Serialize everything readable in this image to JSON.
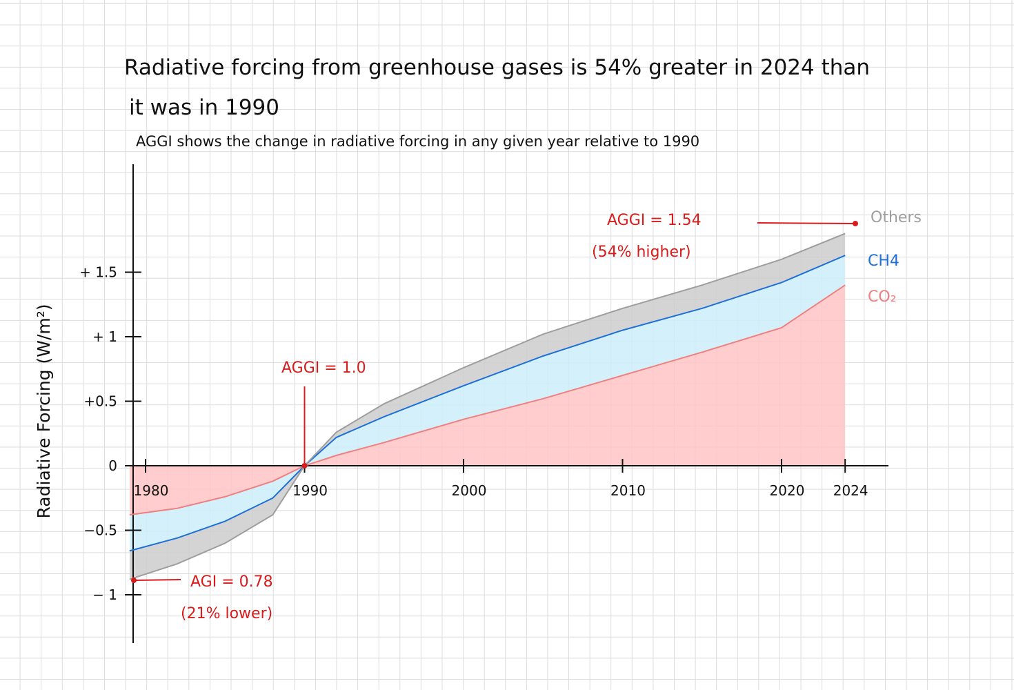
{
  "chart_data": {
    "type": "area",
    "title_lines": [
      "Radiative forcing from greenhouse gases is 54% greater in 2024 than",
      "it was in 1990"
    ],
    "subtitle": "AGGI shows the change in radiative forcing in any given year relative to 1990",
    "ylabel": "Radiative Forcing (W/m²)",
    "x_ticks": [
      1980,
      1990,
      2000,
      2010,
      2020,
      2024
    ],
    "x_tick_labels": [
      "1980",
      "1990",
      "2000",
      "2010",
      "2020",
      "2024"
    ],
    "y_ticks": [
      -1,
      -0.5,
      0,
      0.5,
      1,
      1.5
    ],
    "y_tick_labels": [
      "− 1",
      "−0.5",
      "0",
      "+0.5",
      "+ 1",
      "+ 1.5"
    ],
    "xlim": [
      1979.5,
      2026
    ],
    "ylim": [
      -1.4,
      2.3
    ],
    "series": [
      {
        "name": "CO₂",
        "color": "#f07f7f",
        "fill": "#ffc4c4",
        "x": [
          1979,
          1982,
          1985,
          1988,
          1990,
          1992,
          1995,
          2000,
          2005,
          2010,
          2015,
          2020,
          2024
        ],
        "y": [
          -0.38,
          -0.33,
          -0.24,
          -0.12,
          0,
          0.08,
          0.18,
          0.36,
          0.52,
          0.7,
          0.88,
          1.07,
          1.4
        ]
      },
      {
        "name": "CH4",
        "color": "#1f6fd8",
        "fill": "#cdeffa",
        "x": [
          1979,
          1982,
          1985,
          1988,
          1990,
          1992,
          1995,
          2000,
          2005,
          2010,
          2015,
          2020,
          2024
        ],
        "y": [
          -0.66,
          -0.56,
          -0.43,
          -0.25,
          0,
          0.22,
          0.38,
          0.62,
          0.85,
          1.05,
          1.22,
          1.42,
          1.63
        ]
      },
      {
        "name": "Others",
        "color": "#9e9e9e",
        "fill": "#cccccc",
        "x": [
          1979,
          1982,
          1985,
          1988,
          1990,
          1992,
          1995,
          2000,
          2005,
          2010,
          2015,
          2020,
          2024
        ],
        "y": [
          -0.88,
          -0.76,
          -0.6,
          -0.38,
          0,
          0.26,
          0.48,
          0.76,
          1.02,
          1.22,
          1.4,
          1.6,
          1.8
        ]
      }
    ],
    "annotations": [
      {
        "x": 1980,
        "y": -0.88,
        "lines": [
          "AGI = 0.78",
          "(21% lower)"
        ]
      },
      {
        "x": 1990,
        "y": 0,
        "lines": [
          "AGGI = 1.0"
        ]
      },
      {
        "x": 2024,
        "y": 1.8,
        "lines": [
          "AGGI = 1.54",
          "(54% higher)"
        ]
      }
    ],
    "grid": true,
    "legend": "right"
  }
}
